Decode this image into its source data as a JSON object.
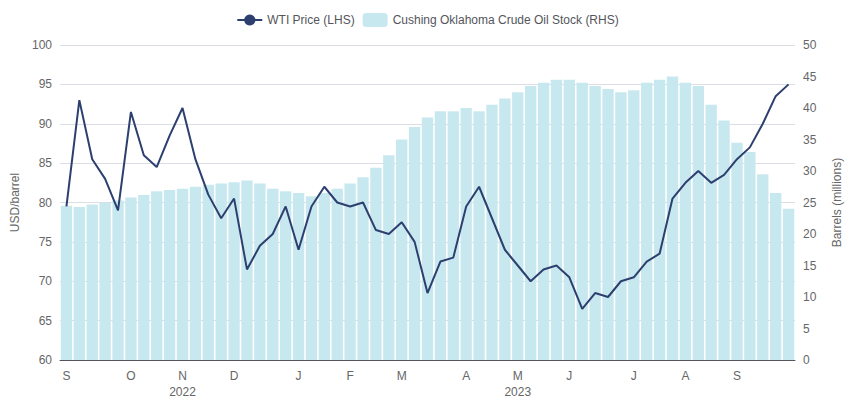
{
  "chart_data": {
    "type": "combo",
    "categories": [
      "S",
      null,
      null,
      null,
      null,
      "O",
      null,
      null,
      null,
      "N",
      null,
      null,
      null,
      "D",
      null,
      null,
      null,
      null,
      "J",
      null,
      null,
      null,
      "F",
      null,
      null,
      null,
      "M",
      null,
      null,
      null,
      null,
      "A",
      null,
      null,
      null,
      "M",
      null,
      null,
      null,
      "J",
      null,
      null,
      null,
      null,
      "J",
      null,
      null,
      null,
      "A",
      null,
      null,
      null,
      "S",
      null,
      null,
      null,
      null
    ],
    "series": [
      {
        "name": "WTI Price (LHS)",
        "type": "line",
        "color": "#2d3f6e",
        "values": [
          79.5,
          93.0,
          85.5,
          83.0,
          79.0,
          91.5,
          86.0,
          84.5,
          88.5,
          92.0,
          85.5,
          81.0,
          78.0,
          80.5,
          71.5,
          74.5,
          76.0,
          79.5,
          74.0,
          79.5,
          82.0,
          80.0,
          79.5,
          80.0,
          76.5,
          76.0,
          77.5,
          75.0,
          68.5,
          72.5,
          73.0,
          79.5,
          82.0,
          78.0,
          74.0,
          72.0,
          70.0,
          71.5,
          72.0,
          70.5,
          66.5,
          68.5,
          68.0,
          70.0,
          70.5,
          72.5,
          73.5,
          80.5,
          82.5,
          84.0,
          82.5,
          83.5,
          85.5,
          87.0,
          90.0,
          93.5,
          95.0
        ]
      },
      {
        "name": "Cushing Oklahoma Crude Oil Stock (RHS)",
        "type": "bar",
        "axis": "y2",
        "color": "#c8e8f0",
        "values": [
          24.5,
          24.3,
          24.7,
          25.0,
          25.3,
          25.8,
          26.2,
          26.8,
          27.0,
          27.2,
          27.5,
          27.8,
          28.0,
          28.2,
          28.5,
          28.0,
          27.2,
          26.8,
          26.5,
          26.0,
          26.5,
          27.2,
          28.0,
          29.0,
          30.5,
          32.5,
          35.0,
          37.0,
          38.5,
          39.5,
          39.5,
          40.0,
          39.5,
          40.5,
          41.5,
          42.5,
          43.5,
          44.0,
          44.5,
          44.5,
          44.0,
          43.5,
          43.0,
          42.5,
          42.8,
          44.0,
          44.5,
          45.0,
          44.0,
          43.5,
          40.5,
          38.0,
          34.5,
          33.0,
          29.5,
          26.5,
          24.0
        ]
      }
    ],
    "ylabel": "USD/barrel",
    "y2label": "Barrels (millions)",
    "ylim": [
      60,
      100
    ],
    "yticks": [
      60,
      65,
      70,
      75,
      80,
      85,
      90,
      95,
      100
    ],
    "y2lim": [
      0,
      50
    ],
    "y2ticks": [
      0,
      5,
      10,
      15,
      20,
      25,
      30,
      35,
      40,
      45,
      50
    ],
    "grid": true,
    "legend": "top",
    "annotations": [
      {
        "text": "2022",
        "x": 9
      },
      {
        "text": "2023",
        "x": 35
      }
    ]
  }
}
